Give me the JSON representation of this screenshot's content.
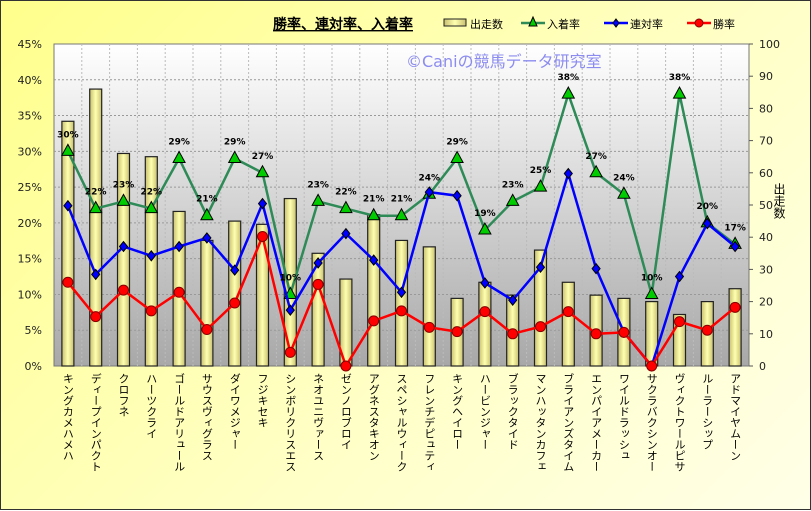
{
  "chart_data": {
    "type": "bar+line",
    "title": "勝率、連対率、入着率",
    "watermark": "©Caniの競馬データ研究室",
    "y_left": {
      "ylim": [
        0,
        45
      ],
      "ticks": [
        "0%",
        "5%",
        "10%",
        "15%",
        "20%",
        "25%",
        "30%",
        "35%",
        "40%",
        "45%"
      ]
    },
    "y_right": {
      "label": "出走数",
      "ylim": [
        0,
        100
      ],
      "ticks": [
        "0",
        "10",
        "20",
        "30",
        "40",
        "50",
        "60",
        "70",
        "80",
        "90",
        "100"
      ]
    },
    "grid": true,
    "legend": "top-right",
    "categories": [
      "キングカメハメハ",
      "ディープインパクト",
      "クロフネ",
      "ハーツクライ",
      "ゴールドアリュール",
      "サウスヴィグラス",
      "ダイワメジャー",
      "フジキセキ",
      "シンボリクリスエス",
      "ネオユニヴァース",
      "ゼンノロブロイ",
      "アグネスタキオン",
      "スペシャルウィーク",
      "フレンチデピュティ",
      "キングヘイロー",
      "ハービンジャー",
      "ブラックタイド",
      "マンハッタンカフェ",
      "ブライアンズタイム",
      "エンパイアメーカー",
      "ワイルドラッシュ",
      "サクラバクシンオー",
      "ヴィクトワールピサ",
      "ルーラーシップ",
      "アドマイヤムーン"
    ],
    "series": [
      {
        "name": "出走数",
        "type": "bar",
        "axis": "right",
        "color": "#f5f09a",
        "values": [
          76,
          86,
          66,
          65,
          48,
          39,
          45,
          44,
          52,
          35,
          27,
          47,
          39,
          37,
          21,
          26,
          22,
          36,
          26,
          22,
          21,
          20,
          16,
          20,
          24
        ]
      },
      {
        "name": "入着率",
        "type": "line",
        "axis": "left",
        "color": "#2e8b57",
        "marker_color": "#00cc00",
        "values": [
          30,
          22,
          23,
          22,
          29,
          21,
          29,
          27,
          10,
          23,
          22,
          21,
          21,
          24,
          29,
          19,
          23,
          25,
          38,
          27,
          24,
          10,
          38,
          20,
          17
        ],
        "data_labels": [
          "30%",
          "22%",
          "23%",
          "22%",
          "29%",
          "21%",
          "29%",
          "27%",
          "10%",
          "23%",
          "22%",
          "21%",
          "21%",
          "24%",
          "29%",
          "19%",
          "23%",
          "25%",
          "38%",
          "27%",
          "24%",
          "10%",
          "38%",
          "20%",
          "17%"
        ]
      },
      {
        "name": "連対率",
        "type": "line",
        "axis": "left",
        "color": "#0000ff",
        "values": [
          22.4,
          12.8,
          16.7,
          15.4,
          16.7,
          17.9,
          13.4,
          22.7,
          7.8,
          14.4,
          18.5,
          14.8,
          10.3,
          24.3,
          23.8,
          11.6,
          9.2,
          13.8,
          26.9,
          13.6,
          4.7,
          0,
          12.5,
          19.9,
          16.7
        ]
      },
      {
        "name": "勝率",
        "type": "line",
        "axis": "left",
        "color": "#ff0000",
        "values": [
          11.7,
          6.9,
          10.6,
          7.7,
          10.3,
          5.1,
          8.8,
          18.1,
          1.9,
          11.4,
          0,
          6.3,
          7.7,
          5.4,
          4.8,
          7.6,
          4.5,
          5.5,
          7.6,
          4.5,
          4.7,
          0,
          6.2,
          5.0,
          8.2
        ]
      }
    ]
  }
}
